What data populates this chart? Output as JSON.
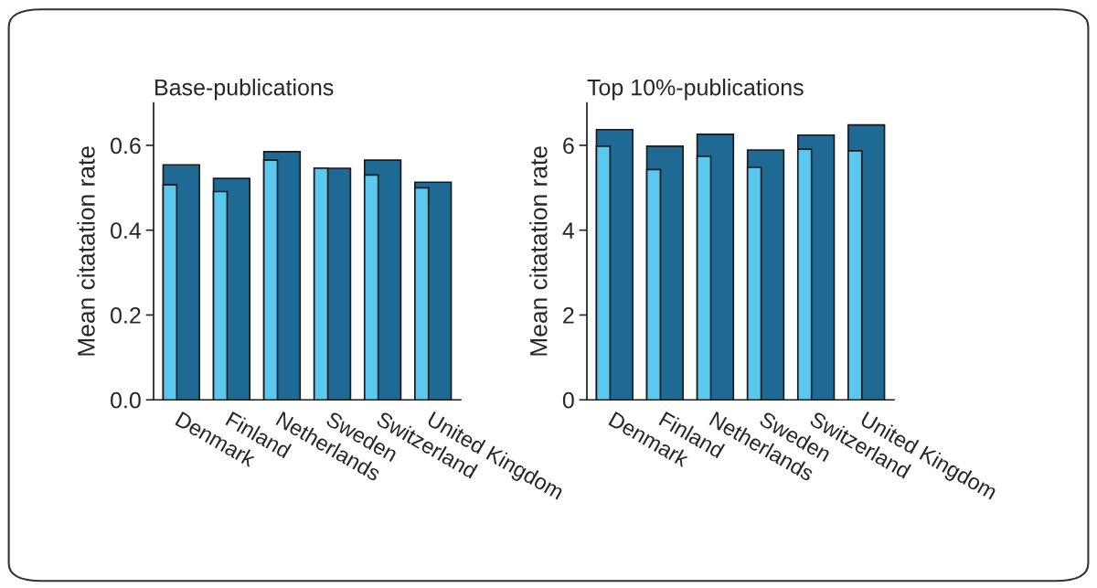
{
  "chart_data": [
    {
      "type": "bar",
      "title": "Base-publications",
      "ylabel": "Mean citatation rate",
      "categories": [
        "Denmark",
        "Finland",
        "Netherlands",
        "Sweden",
        "Switzerland",
        "United Kingdom"
      ],
      "series": [
        {
          "color": "#5bc8ef",
          "values": [
            0.507,
            0.491,
            0.565,
            0.546,
            0.53,
            0.5
          ]
        },
        {
          "color": "#1f6a94",
          "values": [
            0.554,
            0.522,
            0.585,
            0.546,
            0.565,
            0.513
          ]
        }
      ],
      "ylim": [
        0,
        0.7
      ],
      "yticks": [
        {
          "value": 0,
          "label": "0.0"
        },
        0.2,
        0.4,
        0.6
      ],
      "grid": false,
      "legend": false
    },
    {
      "type": "bar",
      "title": "Top 10%-publications",
      "ylabel": "Mean citatation rate",
      "categories": [
        "Denmark",
        "Finland",
        "Netherlands",
        "Sweden",
        "Switzerland",
        "United Kingdom"
      ],
      "series": [
        {
          "color": "#5bc8ef",
          "values": [
            5.98,
            5.43,
            5.74,
            5.48,
            5.91,
            5.87
          ]
        },
        {
          "color": "#1f6a94",
          "values": [
            6.37,
            5.98,
            6.26,
            5.89,
            6.24,
            6.48
          ]
        }
      ],
      "ylim": [
        0,
        7
      ],
      "yticks": [
        0,
        2,
        4,
        6
      ],
      "grid": false,
      "legend": false
    }
  ]
}
